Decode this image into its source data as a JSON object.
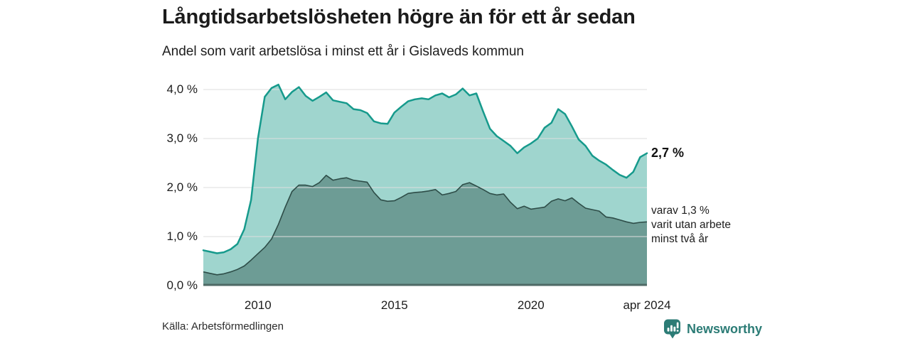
{
  "header": {
    "title": "Långtidsarbetslösheten högre än för ett år sedan",
    "subtitle": "Andel som varit arbetslösa i minst ett år i Gislaveds kommun"
  },
  "chart_data": {
    "type": "area",
    "title": "Långtidsarbetslösheten högre än för ett år sedan",
    "subtitle": "Andel som varit arbetslösa i minst ett år i Gislaveds kommun",
    "unit": "%",
    "xlim": [
      2008.0,
      2024.25
    ],
    "ylim": [
      0,
      4.35
    ],
    "grid": true,
    "x_start": 2008.0,
    "x_step": 0.25,
    "y_ticks": [
      {
        "value": 4,
        "label": "4,0 %"
      },
      {
        "value": 3,
        "label": "3,0 %"
      },
      {
        "value": 2,
        "label": "2,0 %"
      },
      {
        "value": 1,
        "label": "1,0 %"
      },
      {
        "value": 0,
        "label": "0,0 %"
      }
    ],
    "x_ticks": [
      {
        "value": 2010,
        "label": "2010"
      },
      {
        "value": 2015,
        "label": "2015"
      },
      {
        "value": 2020,
        "label": "2020"
      },
      {
        "value": 2024.25,
        "label": "apr 2024"
      }
    ],
    "series": [
      {
        "name": "Andel arbetslösa minst ett år",
        "end_value": "2,7 %",
        "values": [
          0.72,
          0.69,
          0.66,
          0.68,
          0.74,
          0.85,
          1.15,
          1.75,
          3.0,
          3.85,
          4.03,
          4.1,
          3.8,
          3.95,
          4.05,
          3.87,
          3.77,
          3.85,
          3.94,
          3.78,
          3.75,
          3.72,
          3.6,
          3.58,
          3.52,
          3.35,
          3.31,
          3.3,
          3.53,
          3.65,
          3.76,
          3.8,
          3.82,
          3.8,
          3.88,
          3.92,
          3.84,
          3.9,
          4.02,
          3.88,
          3.92,
          3.55,
          3.2,
          3.05,
          2.95,
          2.85,
          2.7,
          2.82,
          2.9,
          3.0,
          3.22,
          3.32,
          3.6,
          3.5,
          3.25,
          2.98,
          2.85,
          2.65,
          2.55,
          2.47,
          2.36,
          2.26,
          2.2,
          2.32,
          2.62,
          2.7
        ]
      },
      {
        "name": "Andel arbetslösa minst två år",
        "end_value": "1,3 %",
        "values": [
          0.28,
          0.25,
          0.22,
          0.24,
          0.28,
          0.33,
          0.4,
          0.52,
          0.65,
          0.78,
          0.95,
          1.25,
          1.6,
          1.92,
          2.05,
          2.05,
          2.02,
          2.1,
          2.25,
          2.15,
          2.18,
          2.2,
          2.15,
          2.13,
          2.11,
          1.9,
          1.75,
          1.72,
          1.73,
          1.8,
          1.88,
          1.9,
          1.91,
          1.93,
          1.96,
          1.85,
          1.88,
          1.92,
          2.06,
          2.1,
          2.03,
          1.96,
          1.88,
          1.85,
          1.87,
          1.7,
          1.57,
          1.62,
          1.56,
          1.58,
          1.6,
          1.72,
          1.77,
          1.73,
          1.79,
          1.68,
          1.58,
          1.55,
          1.52,
          1.4,
          1.38,
          1.34,
          1.3,
          1.27,
          1.29,
          1.3
        ]
      }
    ]
  },
  "annotations": {
    "primary": "2,7 %",
    "secondary_lines": [
      "varav 1,3 %",
      "varit utan arbete",
      "minst två år"
    ]
  },
  "footer": {
    "source": "Källa: Arbetsförmedlingen",
    "brand": "Newsworthy"
  },
  "colors": {
    "teal_line": "#169a8c",
    "light_fill": "#9fd5ce",
    "dark_fill": "#6d9c95",
    "dark_line": "#2e4d48",
    "baseline": "#4e6a65",
    "grid": "#dedede",
    "brand": "#2c7c76",
    "text": "#1c1c1c"
  }
}
